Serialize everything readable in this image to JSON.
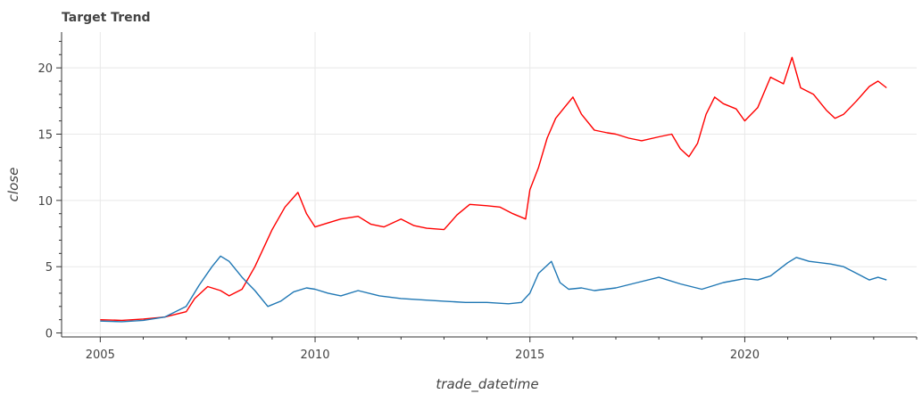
{
  "chart_data": {
    "type": "line",
    "title": "Target Trend",
    "xlabel": "trade_datetime",
    "ylabel": "close",
    "xlim": [
      2004.1,
      2024.0
    ],
    "ylim": [
      -0.3,
      22.7
    ],
    "x_ticks": [
      2005,
      2010,
      2015,
      2020
    ],
    "x_tick_labels": [
      "2005",
      "2010",
      "2015",
      "2020"
    ],
    "y_ticks": [
      0,
      5,
      10,
      15,
      20
    ],
    "y_tick_labels": [
      "0",
      "5",
      "10",
      "15",
      "20"
    ],
    "grid": true,
    "legend": "none",
    "series": [
      {
        "color": "#ff0000",
        "x": [
          2005.0,
          2005.5,
          2006.0,
          2006.5,
          2007.0,
          2007.2,
          2007.5,
          2007.8,
          2008.0,
          2008.3,
          2008.6,
          2009.0,
          2009.3,
          2009.6,
          2009.8,
          2010.0,
          2010.3,
          2010.6,
          2011.0,
          2011.3,
          2011.6,
          2012.0,
          2012.3,
          2012.6,
          2013.0,
          2013.3,
          2013.6,
          2014.0,
          2014.3,
          2014.6,
          2014.9,
          2015.0,
          2015.2,
          2015.4,
          2015.6,
          2015.8,
          2016.0,
          2016.2,
          2016.5,
          2016.8,
          2017.0,
          2017.3,
          2017.6,
          2018.0,
          2018.3,
          2018.5,
          2018.7,
          2018.9,
          2019.1,
          2019.3,
          2019.5,
          2019.8,
          2020.0,
          2020.3,
          2020.6,
          2020.9,
          2021.1,
          2021.3,
          2021.6,
          2021.9,
          2022.1,
          2022.3,
          2022.6,
          2022.9,
          2023.1,
          2023.3
        ],
        "y": [
          1.0,
          0.95,
          1.05,
          1.2,
          1.6,
          2.6,
          3.5,
          3.2,
          2.8,
          3.3,
          5.0,
          7.8,
          9.5,
          10.6,
          9.0,
          8.0,
          8.3,
          8.6,
          8.8,
          8.2,
          8.0,
          8.6,
          8.1,
          7.9,
          7.8,
          8.9,
          9.7,
          9.6,
          9.5,
          9.0,
          8.6,
          10.8,
          12.5,
          14.7,
          16.2,
          17.0,
          17.8,
          16.5,
          15.3,
          15.1,
          15.0,
          14.7,
          14.5,
          14.8,
          15.0,
          13.9,
          13.3,
          14.3,
          16.5,
          17.8,
          17.3,
          16.9,
          16.0,
          17.0,
          19.3,
          18.8,
          20.8,
          18.5,
          18.0,
          16.8,
          16.2,
          16.5,
          17.5,
          18.6,
          19.0,
          18.5
        ]
      },
      {
        "color": "#1f77b4",
        "x": [
          2005.0,
          2005.5,
          2006.0,
          2006.5,
          2007.0,
          2007.3,
          2007.6,
          2007.8,
          2008.0,
          2008.3,
          2008.6,
          2008.9,
          2009.2,
          2009.5,
          2009.8,
          2010.0,
          2010.3,
          2010.6,
          2011.0,
          2011.5,
          2012.0,
          2012.5,
          2013.0,
          2013.5,
          2014.0,
          2014.5,
          2014.8,
          2015.0,
          2015.2,
          2015.5,
          2015.7,
          2015.9,
          2016.2,
          2016.5,
          2017.0,
          2017.5,
          2018.0,
          2018.5,
          2019.0,
          2019.5,
          2020.0,
          2020.3,
          2020.6,
          2021.0,
          2021.2,
          2021.5,
          2022.0,
          2022.3,
          2022.6,
          2022.9,
          2023.1,
          2023.3
        ],
        "y": [
          0.9,
          0.85,
          0.95,
          1.2,
          2.0,
          3.6,
          5.0,
          5.8,
          5.4,
          4.2,
          3.2,
          2.0,
          2.4,
          3.1,
          3.4,
          3.3,
          3.0,
          2.8,
          3.2,
          2.8,
          2.6,
          2.5,
          2.4,
          2.3,
          2.3,
          2.2,
          2.3,
          3.0,
          4.5,
          5.4,
          3.8,
          3.3,
          3.4,
          3.2,
          3.4,
          3.8,
          4.2,
          3.7,
          3.3,
          3.8,
          4.1,
          4.0,
          4.3,
          5.3,
          5.7,
          5.4,
          5.2,
          5.0,
          4.5,
          4.0,
          4.2,
          4.0
        ]
      }
    ]
  }
}
